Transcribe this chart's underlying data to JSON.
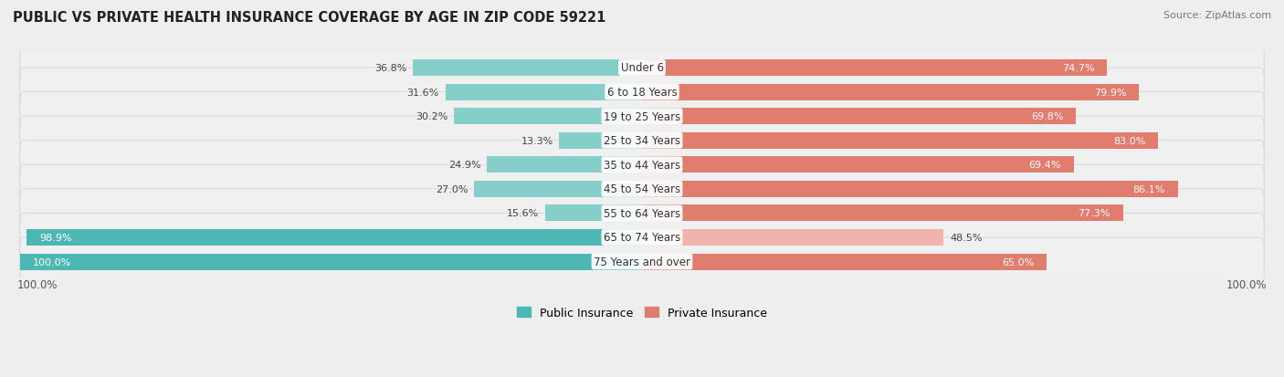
{
  "title": "PUBLIC VS PRIVATE HEALTH INSURANCE COVERAGE BY AGE IN ZIP CODE 59221",
  "source": "Source: ZipAtlas.com",
  "categories": [
    "Under 6",
    "6 to 18 Years",
    "19 to 25 Years",
    "25 to 34 Years",
    "35 to 44 Years",
    "45 to 54 Years",
    "55 to 64 Years",
    "65 to 74 Years",
    "75 Years and over"
  ],
  "public_values": [
    36.8,
    31.6,
    30.2,
    13.3,
    24.9,
    27.0,
    15.6,
    98.9,
    100.0
  ],
  "private_values": [
    74.7,
    79.9,
    69.8,
    83.0,
    69.4,
    86.1,
    77.3,
    48.5,
    65.0
  ],
  "public_color_dark": "#4db8b3",
  "public_color_light": "#85ceca",
  "private_color_dark": "#e07d6e",
  "private_color_light": "#f0b4ad",
  "row_bg_color": "#e8e8e8",
  "row_fill_color": "#f5f5f5",
  "bg_color": "#eeeeee",
  "title_fontsize": 10.5,
  "source_fontsize": 8,
  "label_fontsize": 8.5,
  "value_fontsize": 8,
  "legend_fontsize": 9,
  "max_val": 100.0,
  "public_dark_threshold": 90.0,
  "private_dark_threshold": 60.0
}
